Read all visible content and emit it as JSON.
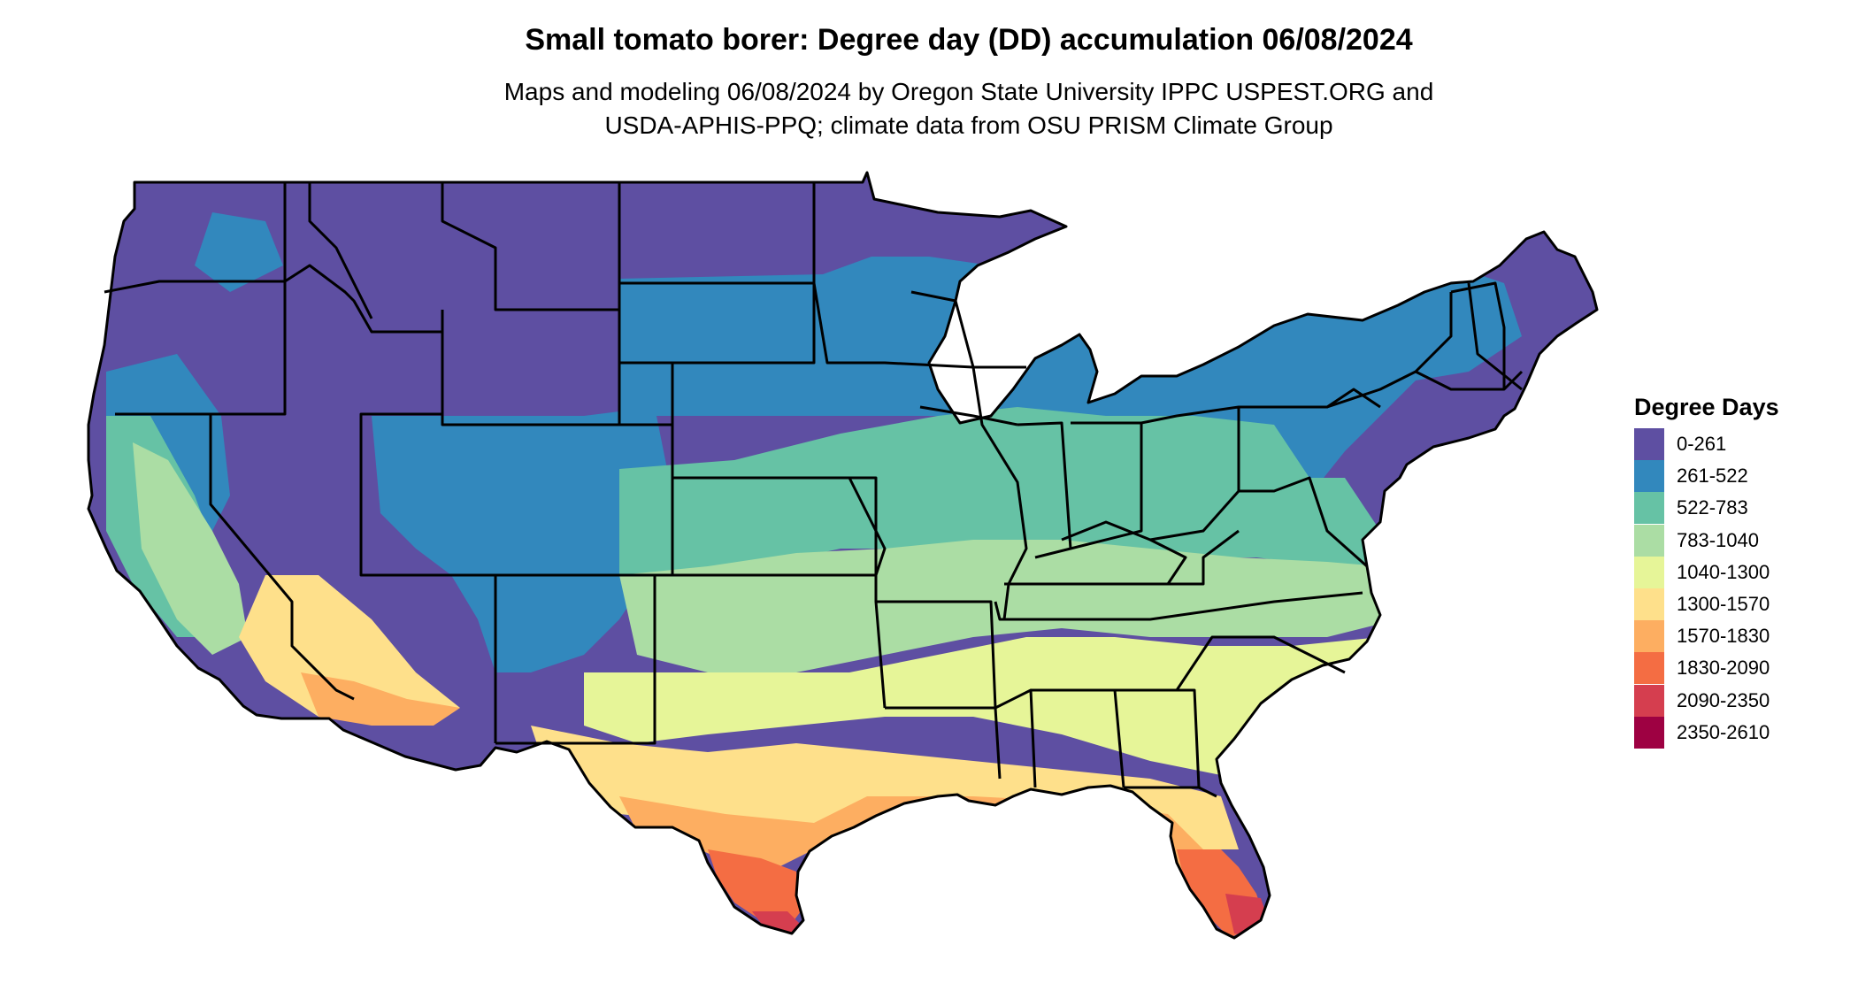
{
  "title": "Small tomato borer: Degree day (DD) accumulation 06/08/2024",
  "subtitle": {
    "line1": "Maps and modeling 06/08/2024 by Oregon State University IPPC USPEST.ORG and",
    "line2": "USDA-APHIS-PPQ; climate data from OSU PRISM Climate Group"
  },
  "legend": {
    "title": "Degree Days",
    "items": [
      {
        "label": "0-261",
        "color": "#5e4fa2"
      },
      {
        "label": "261-522",
        "color": "#3288bd"
      },
      {
        "label": "522-783",
        "color": "#66c2a5"
      },
      {
        "label": "783-1040",
        "color": "#abdda4"
      },
      {
        "label": "1040-1300",
        "color": "#e6f598"
      },
      {
        "label": "1300-1570",
        "color": "#fee08b"
      },
      {
        "label": "1570-1830",
        "color": "#fdae61"
      },
      {
        "label": "1830-2090",
        "color": "#f46d43"
      },
      {
        "label": "2090-2350",
        "color": "#d53e4f"
      },
      {
        "label": "2350-2610",
        "color": "#9e0142"
      }
    ]
  },
  "map": {
    "region": "Contiguous United States",
    "state_border_color": "#000000"
  }
}
